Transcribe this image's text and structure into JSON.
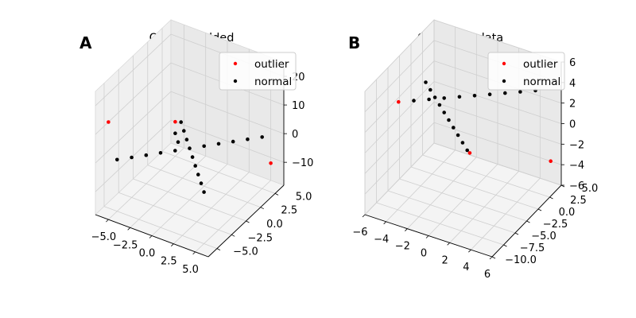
{
  "chart_data": [
    {
      "type": "scatter",
      "panel_label": "A",
      "title": "Outliers added",
      "projection": "3d",
      "xlim": [
        -6.5,
        6.5
      ],
      "ylim": [
        -6.5,
        6.5
      ],
      "zlim": [
        -18,
        25
      ],
      "xticks": [
        "−5.0",
        "−2.5",
        "0.0",
        "2.5",
        "5.0"
      ],
      "yticks": [
        "−5.0",
        "−2.5",
        "0.0",
        "2.5",
        "5.0"
      ],
      "zticks": [
        "−10",
        "0",
        "10",
        "20"
      ],
      "grid": true,
      "legend_position": "top-right",
      "series": [
        {
          "name": "outlier",
          "color": "#ff0000",
          "points": [
            [
              -6,
              -5,
              12
            ],
            [
              6,
              5,
              -8
            ],
            [
              -5,
              5,
              -6
            ]
          ]
        },
        {
          "name": "normal",
          "color": "#000000",
          "points": [
            [
              -5,
              -5,
              0
            ],
            [
              -4,
              -4,
              0
            ],
            [
              -3,
              -3,
              0
            ],
            [
              -2,
              -2,
              0
            ],
            [
              -1,
              -1,
              0
            ],
            [
              0,
              0,
              0
            ],
            [
              1,
              1,
              0
            ],
            [
              2,
              2,
              0
            ],
            [
              3,
              3,
              0
            ],
            [
              4,
              4,
              0
            ],
            [
              5,
              5,
              0
            ],
            [
              -5,
              5,
              -10
            ],
            [
              -4,
              4,
              -10
            ],
            [
              -3,
              3,
              0
            ],
            [
              -2,
              2,
              0
            ],
            [
              -1,
              1,
              0
            ],
            [
              1,
              -1,
              0
            ],
            [
              2,
              -2,
              0
            ],
            [
              3,
              -3,
              0
            ],
            [
              4,
              -4,
              0
            ],
            [
              5,
              -5,
              0
            ]
          ]
        }
      ]
    },
    {
      "type": "scatter",
      "panel_label": "B",
      "title": "Corrected data",
      "projection": "3d",
      "xlim": [
        -6,
        6
      ],
      "ylim": [
        -10,
        5
      ],
      "zlim": [
        -6,
        6
      ],
      "xticks": [
        "−6",
        "−4",
        "−2",
        "0",
        "2",
        "4",
        "6"
      ],
      "yticks": [
        "−10.0",
        "−7.5",
        "−5.0",
        "−2.5",
        "0.0",
        "2.5",
        "5.0"
      ],
      "zticks": [
        "−6",
        "−4",
        "−2",
        "0",
        "2",
        "4",
        "6"
      ],
      "grid": true,
      "legend_position": "top-right",
      "series": [
        {
          "name": "outlier",
          "color": "#ff0000",
          "points": [
            [
              -5,
              -5,
              3
            ],
            [
              5,
              5,
              -4
            ],
            [
              -2.2,
              4,
              -5.2
            ]
          ]
        },
        {
          "name": "normal",
          "color": "#000000",
          "points": [
            [
              -4,
              -4,
              3
            ],
            [
              -3,
              -3,
              3
            ],
            [
              -2,
              -2,
              3
            ],
            [
              -1,
              -1,
              3
            ],
            [
              0,
              0,
              3
            ],
            [
              1,
              1,
              3
            ],
            [
              2,
              2,
              3
            ],
            [
              3,
              3,
              3
            ],
            [
              4,
              4,
              3
            ],
            [
              -2,
              3,
              -4.4
            ],
            [
              -2,
              2,
              -3.2
            ],
            [
              -2,
              1,
              -2
            ],
            [
              -2,
              0,
              -0.8
            ],
            [
              -2,
              -1,
              0.4
            ],
            [
              -2,
              -2,
              1.6
            ],
            [
              -2,
              -3,
              2.8
            ],
            [
              -2,
              -4,
              4
            ],
            [
              -2,
              -5,
              5.2
            ],
            [
              -2,
              -6,
              6.4
            ]
          ]
        }
      ]
    }
  ]
}
